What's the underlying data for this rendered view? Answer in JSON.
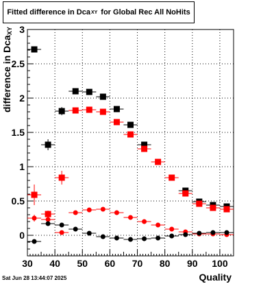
{
  "title": {
    "main": "Fitted difference in Dca",
    "sub": "XY",
    "rest": "for Global Rec All NoHits"
  },
  "timestamp": "Sat Jun 28 13:44:07 2025",
  "chart_data": {
    "type": "scatter",
    "title": "Fitted difference in Dca_XY for Global Rec All NoHits",
    "xlabel": "Quality",
    "ylabel": "difference in Dca_XY",
    "ylabel_main": "difference in Dca",
    "ylabel_sub": "XY",
    "xlim": [
      30,
      105
    ],
    "ylim": [
      -0.3,
      3
    ],
    "xticks": [
      30,
      40,
      50,
      60,
      70,
      80,
      90,
      100
    ],
    "yticks": [
      0,
      0.5,
      1,
      1.5,
      2,
      2.5,
      3
    ],
    "xtick_labels": [
      "30",
      "40",
      "50",
      "60",
      "70",
      "80",
      "90",
      "100"
    ],
    "ytick_labels": [
      "0",
      "0.5",
      "1",
      "1.5",
      "2",
      "2.5",
      "3"
    ],
    "grid": true,
    "x_halfwidth": 2.5,
    "series": [
      {
        "marker": "square",
        "color": "#000000",
        "x": [
          32.5,
          37.5,
          42.5,
          47.5,
          52.5,
          57.5,
          62.5,
          67.5,
          72.5,
          87.5,
          92.5,
          97.5,
          102.5
        ],
        "y": [
          2.71,
          1.32,
          1.81,
          2.1,
          2.09,
          2.02,
          1.84,
          1.61,
          1.32,
          0.65,
          0.49,
          0.44,
          0.42
        ],
        "err": [
          0.03,
          0.08,
          0.06,
          0.03,
          0.03,
          0.03,
          0.03,
          0.03,
          0.03,
          0.02,
          0.02,
          0.02,
          0.02
        ]
      },
      {
        "marker": "square",
        "color": "#ff0000",
        "x": [
          32.5,
          37.5,
          42.5,
          47.5,
          52.5,
          57.5,
          62.5,
          67.5,
          72.5,
          77.5,
          82.5,
          87.5,
          92.5,
          97.5,
          102.5
        ],
        "y": [
          0.59,
          0.31,
          0.84,
          1.82,
          1.83,
          1.8,
          1.65,
          1.47,
          1.26,
          1.07,
          0.84,
          0.61,
          0.46,
          0.4,
          0.38
        ],
        "err": [
          0.15,
          0.05,
          0.1,
          0.04,
          0.03,
          0.03,
          0.03,
          0.03,
          0.03,
          0.02,
          0.02,
          0.02,
          0.02,
          0.02,
          0.02
        ]
      },
      {
        "marker": "circle",
        "color": "#ff0000",
        "x": [
          32.5,
          37.5,
          42.5,
          47.5,
          52.5,
          57.5,
          62.5,
          67.5,
          72.5,
          77.5,
          82.5,
          87.5,
          92.5,
          97.5,
          102.5
        ],
        "y": [
          0.25,
          0.23,
          0.04,
          0.33,
          0.37,
          0.38,
          0.33,
          0.26,
          0.2,
          0.15,
          0.09,
          0.05,
          0.02,
          0.02,
          0.01
        ],
        "err": [
          0.05,
          0.03,
          0.02,
          0.02,
          0.02,
          0.02,
          0.02,
          0.02,
          0.02,
          0.01,
          0.01,
          0.01,
          0.01,
          0.01,
          0.01
        ]
      },
      {
        "marker": "circle",
        "color": "#000000",
        "x": [
          32.5,
          37.5,
          42.5,
          47.5,
          52.5,
          57.5,
          62.5,
          67.5,
          72.5,
          77.5,
          82.5,
          87.5,
          92.5,
          97.5,
          102.5
        ],
        "y": [
          -0.09,
          0.17,
          0.15,
          0.09,
          0.03,
          -0.02,
          -0.04,
          -0.06,
          -0.05,
          -0.04,
          -0.01,
          0.01,
          0.03,
          0.04,
          0.04
        ],
        "err": [
          0.03,
          0.03,
          0.02,
          0.02,
          0.01,
          0.01,
          0.01,
          0.01,
          0.01,
          0.01,
          0.01,
          0.01,
          0.01,
          0.01,
          0.01
        ]
      }
    ]
  }
}
